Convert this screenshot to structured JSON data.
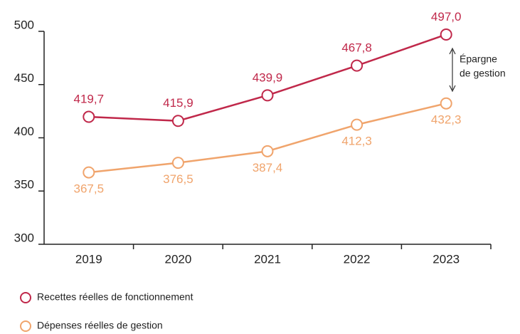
{
  "chart_data": {
    "type": "line",
    "categories": [
      "2019",
      "2020",
      "2021",
      "2022",
      "2023"
    ],
    "series": [
      {
        "name": "Recettes réelles de fonctionnement",
        "color": "#c0284a",
        "values": [
          419.7,
          415.9,
          439.9,
          467.8,
          497.0
        ],
        "value_labels": [
          "419,7",
          "415,9",
          "439,9",
          "467,8",
          "497,0"
        ]
      },
      {
        "name": "Dépenses réelles de gestion",
        "color": "#f0a46c",
        "values": [
          367.5,
          376.5,
          387.4,
          412.3,
          432.3
        ],
        "value_labels": [
          "367,5",
          "376,5",
          "387,4",
          "412,3",
          "432,3"
        ]
      }
    ],
    "ylim": [
      300,
      500
    ],
    "yticks": [
      300,
      350,
      400,
      450,
      500
    ],
    "annotation": [
      "Épargne",
      "de gestion"
    ],
    "grid": false
  }
}
